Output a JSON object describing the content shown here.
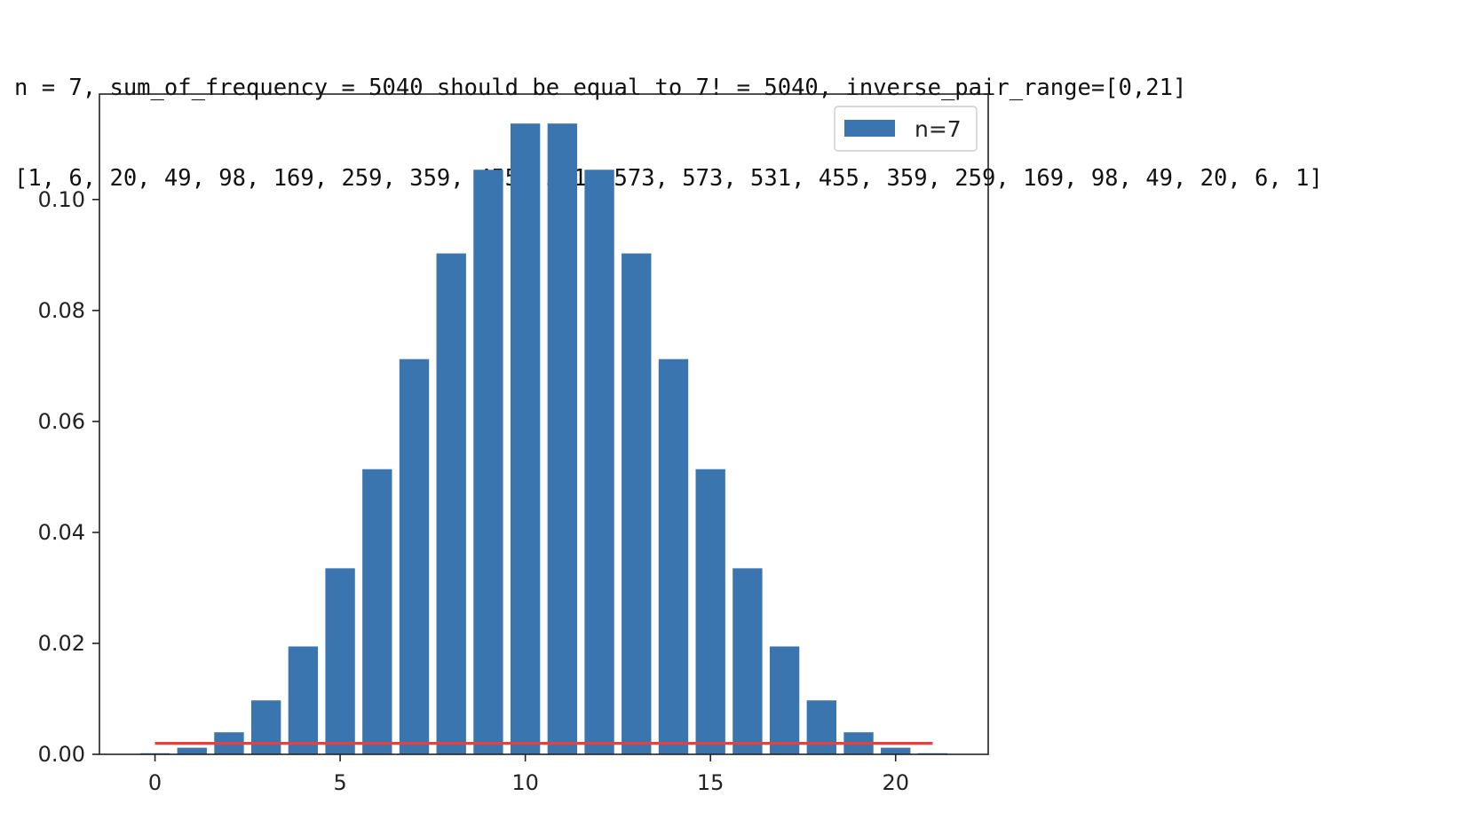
{
  "console": {
    "line1": "n = 7, sum_of_frequency = 5040 should be equal to 7! = 5040, inverse_pair_range=[0,21]",
    "line2": "[1, 6, 20, 49, 98, 169, 259, 359, 455, 531, 573, 573, 531, 455, 359, 259, 169, 98, 49, 20, 6, 1]"
  },
  "chart_data": {
    "type": "bar",
    "title": "",
    "xlabel": "",
    "ylabel": "",
    "x": [
      0,
      1,
      2,
      3,
      4,
      5,
      6,
      7,
      8,
      9,
      10,
      11,
      12,
      13,
      14,
      15,
      16,
      17,
      18,
      19,
      20,
      21
    ],
    "series": [
      {
        "name": "n=7",
        "color": "#3b75af",
        "values": [
          0.000198,
          0.00119,
          0.00397,
          0.00972,
          0.01944,
          0.03353,
          0.05139,
          0.07123,
          0.09028,
          0.10536,
          0.11369,
          0.11369,
          0.10536,
          0.09028,
          0.07123,
          0.05139,
          0.03353,
          0.01944,
          0.00972,
          0.00397,
          0.00119,
          0.000198
        ]
      }
    ],
    "reference_line": {
      "color": "#e8413c",
      "x": [
        0,
        21
      ],
      "y": 0.00198
    },
    "xlim": [
      -1.5,
      22.5
    ],
    "ylim": [
      0,
      0.119
    ],
    "xticks": [
      0,
      5,
      10,
      15,
      20
    ],
    "xtick_labels": [
      "0",
      "5",
      "10",
      "15",
      "20"
    ],
    "yticks": [
      0.0,
      0.02,
      0.04,
      0.06,
      0.08,
      0.1
    ],
    "ytick_labels": [
      "0.00",
      "0.02",
      "0.04",
      "0.06",
      "0.08",
      "0.10"
    ],
    "grid": false,
    "legend_position": "top-right"
  }
}
